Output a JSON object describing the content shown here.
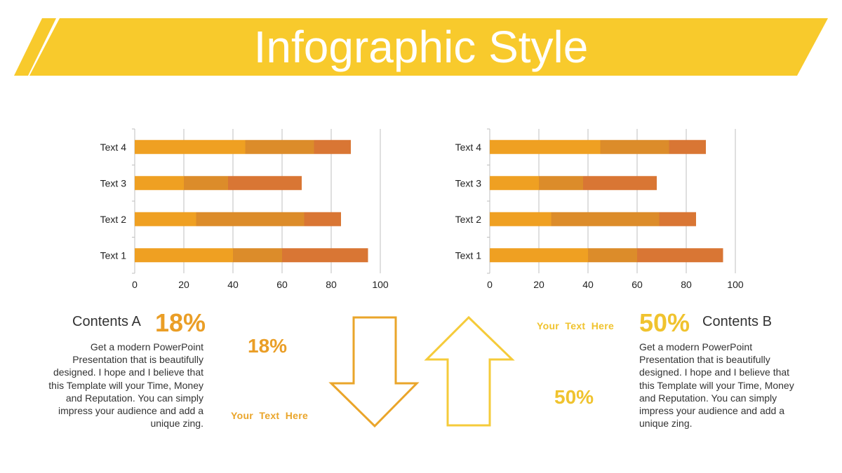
{
  "header": {
    "title": "Infographic Style"
  },
  "colors": {
    "banner": "#F8CA2C",
    "seg1": "#EFA022",
    "seg2": "#DC8C2A",
    "seg3": "#D97634",
    "arrow_down": "#EAA52A",
    "arrow_up": "#F5CB3A",
    "pct_orange": "#EA9E26",
    "pct_yellow": "#F0C32E"
  },
  "chart_data": [
    {
      "type": "bar",
      "stacked": true,
      "orientation": "horizontal",
      "categories": [
        "Text 1",
        "Text 2",
        "Text 3",
        "Text 4"
      ],
      "series": [
        {
          "values": [
            40,
            25,
            20,
            45
          ]
        },
        {
          "values": [
            20,
            44,
            18,
            28
          ]
        },
        {
          "values": [
            35,
            15,
            30,
            15
          ]
        }
      ],
      "xlim": [
        0,
        100
      ],
      "xticks": [
        0,
        20,
        40,
        60,
        80,
        100
      ],
      "grid": true
    },
    {
      "type": "bar",
      "stacked": true,
      "orientation": "horizontal",
      "categories": [
        "Text 1",
        "Text 2",
        "Text 3",
        "Text 4"
      ],
      "series": [
        {
          "values": [
            40,
            25,
            20,
            45
          ]
        },
        {
          "values": [
            20,
            44,
            18,
            28
          ]
        },
        {
          "values": [
            35,
            15,
            30,
            15
          ]
        }
      ],
      "xlim": [
        0,
        100
      ],
      "xticks": [
        0,
        20,
        40,
        60,
        80,
        100
      ],
      "grid": true
    }
  ],
  "left_panel": {
    "title": "Contents A",
    "percent": "18%",
    "body": "Get a modern PowerPoint Presentation that is beautifully designed. I hope and I believe that this Template will your Time, Money and Reputation. You can simply impress your audience and add a unique zing."
  },
  "right_panel": {
    "title": "Contents B",
    "percent": "50%",
    "body": "Get a modern PowerPoint Presentation that is beautifully designed. I hope and I believe that this Template will your Time, Money and Reputation. You can simply impress your audience and add a unique zing."
  },
  "center": {
    "down_percent": "18%",
    "down_text": "Your  Text  Here",
    "up_percent": "50%",
    "up_text": "Your  Text  Here"
  }
}
